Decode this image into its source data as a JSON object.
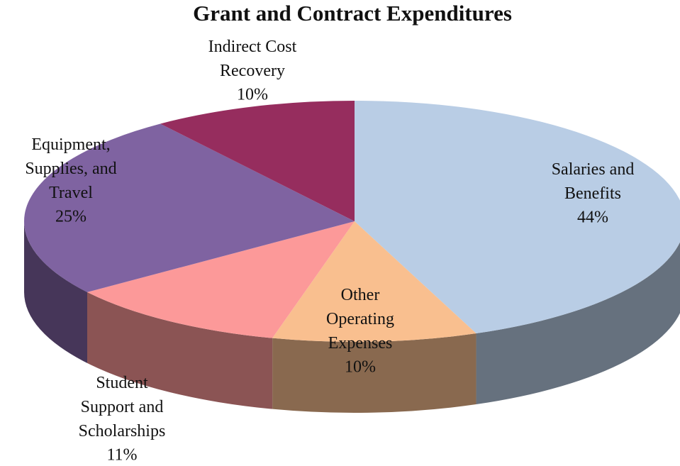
{
  "chart_data": {
    "type": "pie",
    "title": "Grant and Contract Expenditures",
    "categories": [
      "Salaries and Benefits",
      "Other Operating Expenses",
      "Student Support and Scholarships",
      "Equipment, Supplies, and Travel",
      "Indirect Cost Recovery"
    ],
    "values": [
      44,
      10,
      11,
      25,
      10
    ],
    "value_labels": [
      "44%",
      "10%",
      "11%",
      "25%",
      "10%"
    ],
    "colors": [
      "#b9cde5",
      "#f9bf8f",
      "#fc9999",
      "#7f63a1",
      "#962d5e"
    ]
  }
}
